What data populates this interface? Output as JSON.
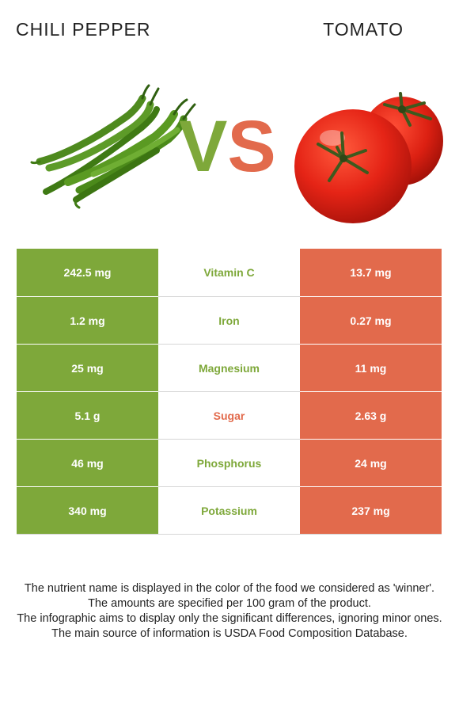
{
  "header": {
    "food_left": "CHILI PEPPER",
    "food_right": "TOMATO",
    "vs_v": "V",
    "vs_s": "S"
  },
  "colors": {
    "food_left": "#7ea83a",
    "food_right": "#e26a4c"
  },
  "images": {
    "left": "chili-pepper-photo",
    "right": "tomato-photo"
  },
  "rows": [
    {
      "left": "242.5 mg",
      "nutrient": "Vitamin C",
      "right": "13.7 mg",
      "winner": "left"
    },
    {
      "left": "1.2 mg",
      "nutrient": "Iron",
      "right": "0.27 mg",
      "winner": "left"
    },
    {
      "left": "25 mg",
      "nutrient": "Magnesium",
      "right": "11 mg",
      "winner": "left"
    },
    {
      "left": "5.1 g",
      "nutrient": "Sugar",
      "right": "2.63 g",
      "winner": "right"
    },
    {
      "left": "46 mg",
      "nutrient": "Phosphorus",
      "right": "24 mg",
      "winner": "left"
    },
    {
      "left": "340 mg",
      "nutrient": "Potassium",
      "right": "237 mg",
      "winner": "left"
    }
  ],
  "footer": [
    "The nutrient name is displayed in the color of the food we considered as 'winner'.",
    "The amounts are specified per 100 gram of the product.",
    "The infographic aims to display only the significant differences, ignoring minor ones.",
    "The main source of information is USDA Food Composition Database."
  ]
}
